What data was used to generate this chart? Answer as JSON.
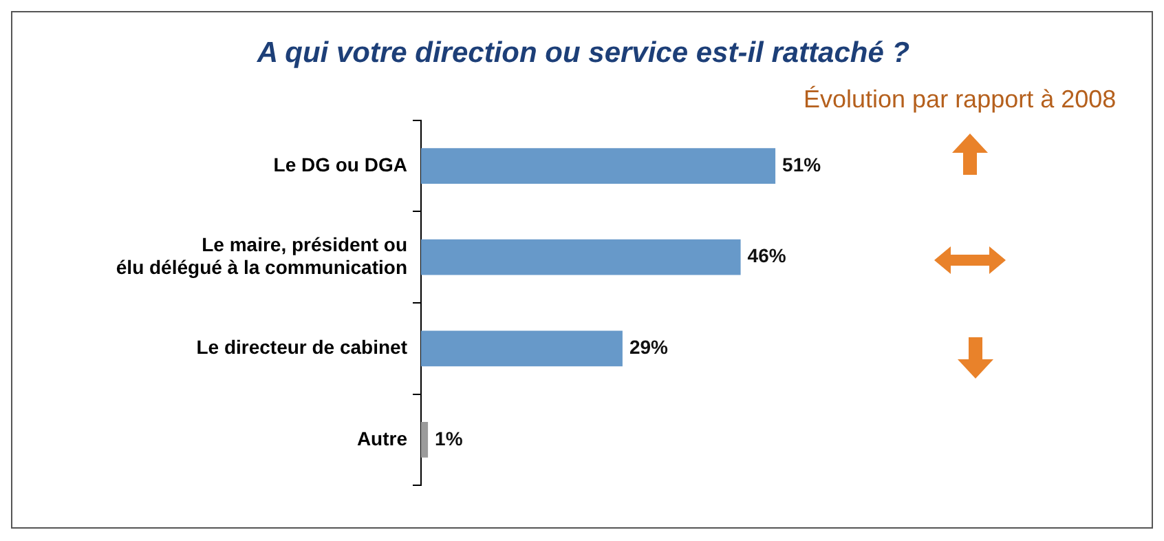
{
  "chart_data": {
    "type": "bar",
    "orientation": "horizontal",
    "title": "A qui votre direction ou service est-il rattaché ?",
    "categories": [
      "Le DG ou DGA",
      "Le maire, président ou\nélu délégué à la communication",
      "Le directeur de cabinet",
      "Autre"
    ],
    "values": [
      51,
      46,
      29,
      1
    ],
    "colors": [
      "#6799c9",
      "#6799c9",
      "#6799c9",
      "#9b9b9b"
    ],
    "value_labels": [
      "51%",
      "46%",
      "29%",
      "1%"
    ],
    "grid": false,
    "legend": false,
    "annotations": [
      "Évolution par rapport à 2008"
    ]
  }
}
